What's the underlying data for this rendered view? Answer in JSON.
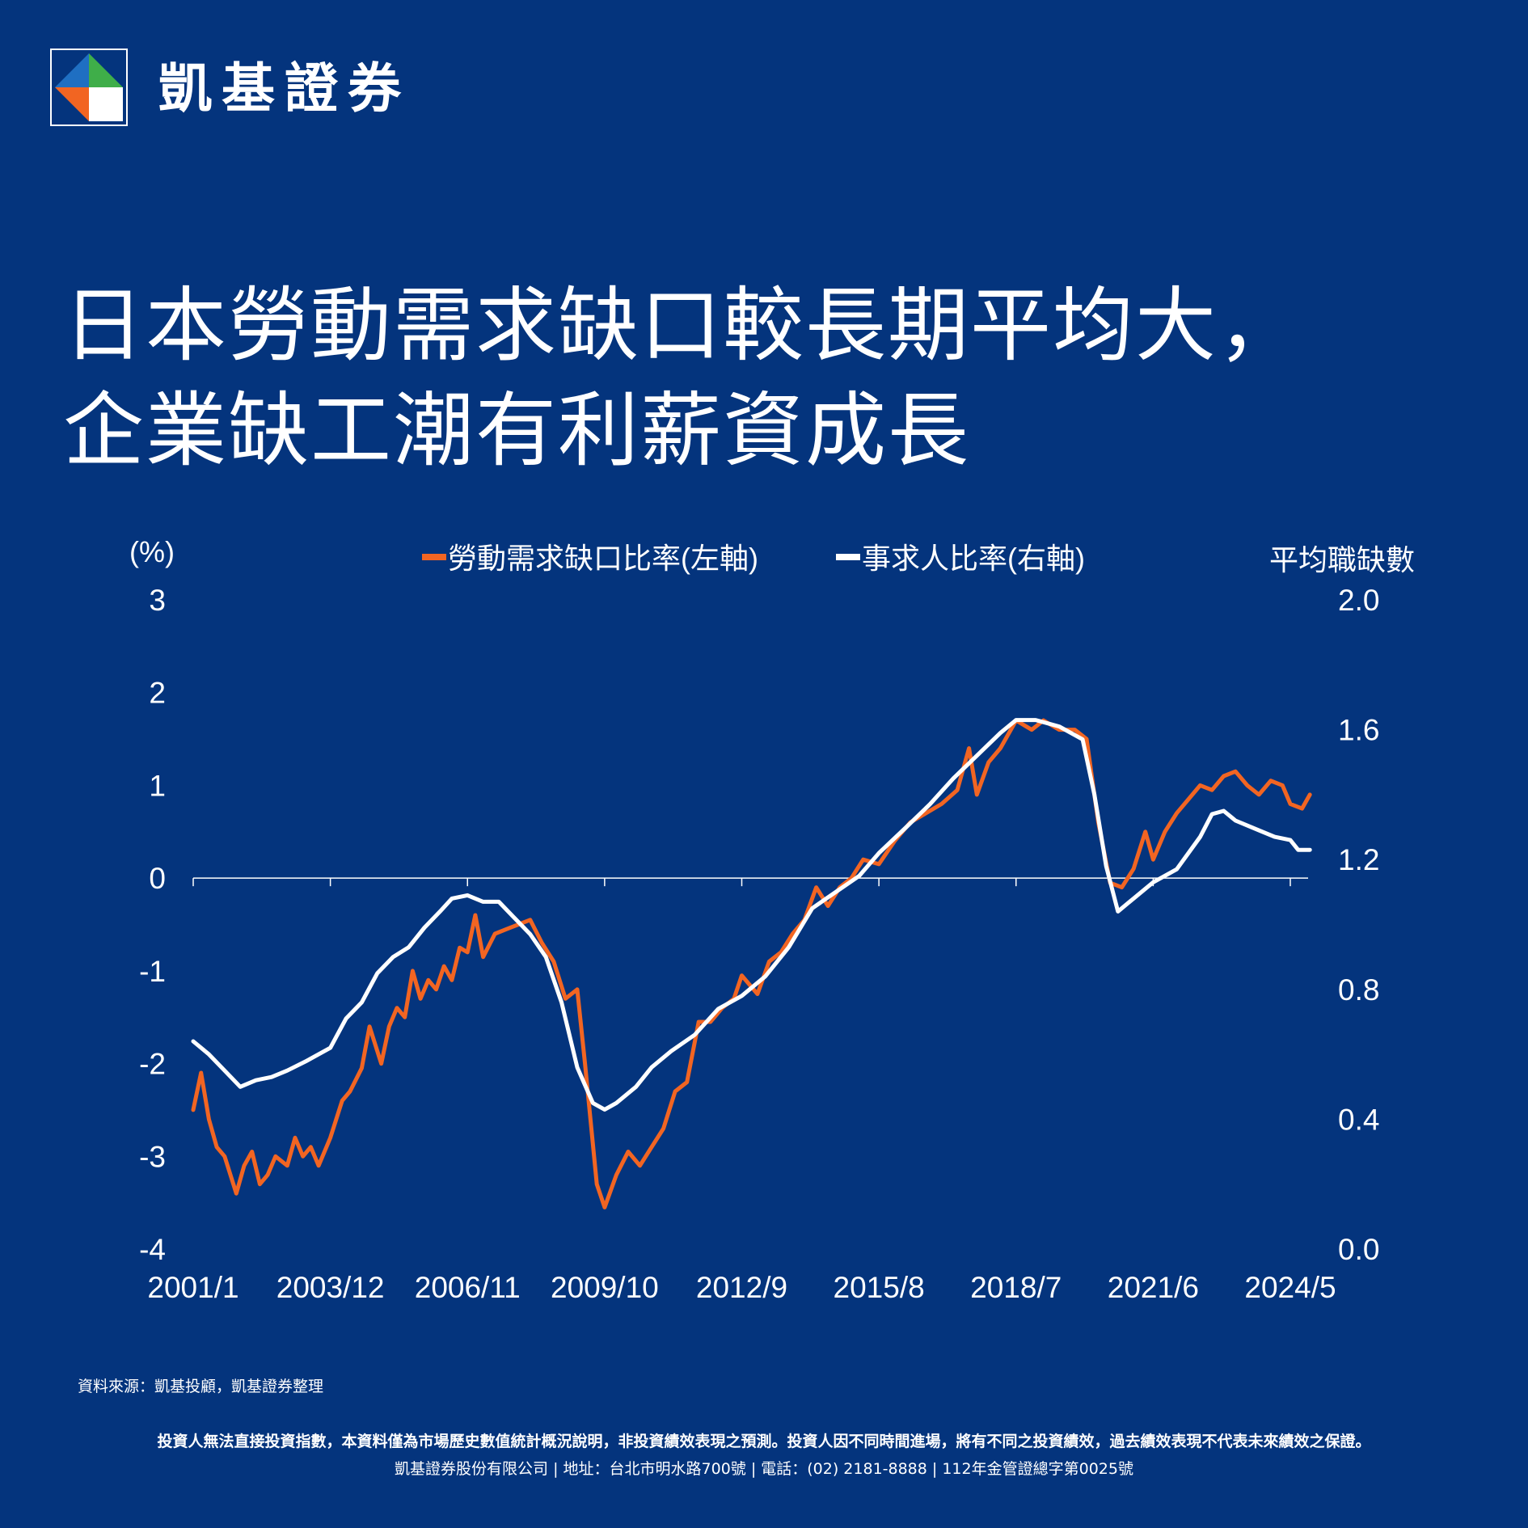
{
  "brand": {
    "name": "凱基證券",
    "logo_icon": "kgi-diamond-logo"
  },
  "headline": {
    "line1": "日本勞動需求缺口較長期平均大，",
    "line2": "企業缺工潮有利薪資成長"
  },
  "chart_data": {
    "type": "line",
    "x_tick_labels": [
      "2001/1",
      "2003/12",
      "2006/11",
      "2009/10",
      "2012/9",
      "2015/8",
      "2018/7",
      "2021/6",
      "2024/5"
    ],
    "y_left": {
      "unit_label": "(%)",
      "ticks": [
        "3",
        "2",
        "1",
        "0",
        "-1",
        "-2",
        "-3",
        "-4"
      ],
      "range": [
        -4,
        3
      ]
    },
    "y_right": {
      "unit_label": "平均職缺數",
      "ticks": [
        "2.0",
        "1.6",
        "1.2",
        "0.8",
        "0.4",
        "0.0"
      ],
      "range": [
        0,
        2
      ]
    },
    "grid": false,
    "legend_position": "top",
    "series": [
      {
        "name": "勞動需求缺口比率(左軸)",
        "axis": "left",
        "color": "#f26522",
        "points": [
          [
            "2001/1",
            -2.5
          ],
          [
            "2001/3",
            -2.1
          ],
          [
            "2001/5",
            -2.6
          ],
          [
            "2001/7",
            -2.9
          ],
          [
            "2001/9",
            -3.0
          ],
          [
            "2001/12",
            -3.4
          ],
          [
            "2002/2",
            -3.1
          ],
          [
            "2002/4",
            -2.95
          ],
          [
            "2002/6",
            -3.3
          ],
          [
            "2002/8",
            -3.2
          ],
          [
            "2002/10",
            -3.0
          ],
          [
            "2003/1",
            -3.1
          ],
          [
            "2003/3",
            -2.8
          ],
          [
            "2003/5",
            -3.0
          ],
          [
            "2003/7",
            -2.9
          ],
          [
            "2003/9",
            -3.1
          ],
          [
            "2003/12",
            -2.8
          ],
          [
            "2004/3",
            -2.4
          ],
          [
            "2004/5",
            -2.3
          ],
          [
            "2004/8",
            -2.05
          ],
          [
            "2004/10",
            -1.6
          ],
          [
            "2005/1",
            -2.0
          ],
          [
            "2005/3",
            -1.6
          ],
          [
            "2005/5",
            -1.4
          ],
          [
            "2005/7",
            -1.5
          ],
          [
            "2005/9",
            -1.0
          ],
          [
            "2005/11",
            -1.3
          ],
          [
            "2006/1",
            -1.1
          ],
          [
            "2006/3",
            -1.2
          ],
          [
            "2006/5",
            -0.95
          ],
          [
            "2006/7",
            -1.1
          ],
          [
            "2006/9",
            -0.75
          ],
          [
            "2006/11",
            -0.8
          ],
          [
            "2007/1",
            -0.4
          ],
          [
            "2007/3",
            -0.85
          ],
          [
            "2007/6",
            -0.6
          ],
          [
            "2007/9",
            -0.55
          ],
          [
            "2007/12",
            -0.5
          ],
          [
            "2008/3",
            -0.45
          ],
          [
            "2008/6",
            -0.7
          ],
          [
            "2008/9",
            -0.9
          ],
          [
            "2008/12",
            -1.3
          ],
          [
            "2009/3",
            -1.2
          ],
          [
            "2009/5",
            -2.0
          ],
          [
            "2009/8",
            -3.3
          ],
          [
            "2009/10",
            -3.55
          ],
          [
            "2010/1",
            -3.2
          ],
          [
            "2010/4",
            -2.95
          ],
          [
            "2010/7",
            -3.1
          ],
          [
            "2010/10",
            -2.9
          ],
          [
            "2011/1",
            -2.7
          ],
          [
            "2011/4",
            -2.3
          ],
          [
            "2011/7",
            -2.2
          ],
          [
            "2011/10",
            -1.55
          ],
          [
            "2012/1",
            -1.55
          ],
          [
            "2012/4",
            -1.4
          ],
          [
            "2012/7",
            -1.3
          ],
          [
            "2012/9",
            -1.05
          ],
          [
            "2013/1",
            -1.25
          ],
          [
            "2013/4",
            -0.9
          ],
          [
            "2013/7",
            -0.8
          ],
          [
            "2013/10",
            -0.6
          ],
          [
            "2014/1",
            -0.45
          ],
          [
            "2014/4",
            -0.1
          ],
          [
            "2014/7",
            -0.3
          ],
          [
            "2014/10",
            -0.1
          ],
          [
            "2015/1",
            0.0
          ],
          [
            "2015/4",
            0.2
          ],
          [
            "2015/8",
            0.15
          ],
          [
            "2015/12",
            0.4
          ],
          [
            "2016/4",
            0.6
          ],
          [
            "2016/8",
            0.7
          ],
          [
            "2016/12",
            0.8
          ],
          [
            "2017/4",
            0.95
          ],
          [
            "2017/7",
            1.4
          ],
          [
            "2017/9",
            0.9
          ],
          [
            "2017/12",
            1.25
          ],
          [
            "2018/3",
            1.4
          ],
          [
            "2018/7",
            1.7
          ],
          [
            "2018/11",
            1.6
          ],
          [
            "2019/2",
            1.7
          ],
          [
            "2019/6",
            1.6
          ],
          [
            "2019/10",
            1.6
          ],
          [
            "2020/1",
            1.5
          ],
          [
            "2020/4",
            0.6
          ],
          [
            "2020/7",
            -0.05
          ],
          [
            "2020/10",
            -0.1
          ],
          [
            "2021/1",
            0.1
          ],
          [
            "2021/4",
            0.5
          ],
          [
            "2021/6",
            0.2
          ],
          [
            "2021/9",
            0.5
          ],
          [
            "2021/12",
            0.7
          ],
          [
            "2022/3",
            0.85
          ],
          [
            "2022/6",
            1.0
          ],
          [
            "2022/9",
            0.95
          ],
          [
            "2022/12",
            1.1
          ],
          [
            "2023/3",
            1.15
          ],
          [
            "2023/6",
            1.0
          ],
          [
            "2023/9",
            0.9
          ],
          [
            "2023/12",
            1.05
          ],
          [
            "2024/3",
            1.0
          ],
          [
            "2024/5",
            0.8
          ],
          [
            "2024/8",
            0.75
          ],
          [
            "2024/10",
            0.9
          ]
        ]
      },
      {
        "name": "事求人比率(右軸)",
        "axis": "right",
        "color": "#ffffff",
        "points": [
          [
            "2001/1",
            0.64
          ],
          [
            "2001/5",
            0.6
          ],
          [
            "2001/9",
            0.55
          ],
          [
            "2002/1",
            0.5
          ],
          [
            "2002/5",
            0.52
          ],
          [
            "2002/9",
            0.53
          ],
          [
            "2003/1",
            0.55
          ],
          [
            "2003/6",
            0.58
          ],
          [
            "2003/12",
            0.62
          ],
          [
            "2004/4",
            0.71
          ],
          [
            "2004/8",
            0.76
          ],
          [
            "2004/12",
            0.85
          ],
          [
            "2005/4",
            0.9
          ],
          [
            "2005/8",
            0.93
          ],
          [
            "2005/12",
            0.99
          ],
          [
            "2006/4",
            1.04
          ],
          [
            "2006/7",
            1.08
          ],
          [
            "2006/11",
            1.09
          ],
          [
            "2007/3",
            1.07
          ],
          [
            "2007/7",
            1.07
          ],
          [
            "2007/11",
            1.02
          ],
          [
            "2008/3",
            0.97
          ],
          [
            "2008/7",
            0.9
          ],
          [
            "2008/11",
            0.76
          ],
          [
            "2009/3",
            0.56
          ],
          [
            "2009/7",
            0.45
          ],
          [
            "2009/10",
            0.43
          ],
          [
            "2010/1",
            0.45
          ],
          [
            "2010/6",
            0.5
          ],
          [
            "2010/10",
            0.56
          ],
          [
            "2011/3",
            0.61
          ],
          [
            "2011/9",
            0.66
          ],
          [
            "2012/3",
            0.74
          ],
          [
            "2012/9",
            0.78
          ],
          [
            "2013/3",
            0.84
          ],
          [
            "2013/9",
            0.93
          ],
          [
            "2014/3",
            1.05
          ],
          [
            "2014/9",
            1.1
          ],
          [
            "2015/3",
            1.15
          ],
          [
            "2015/8",
            1.22
          ],
          [
            "2016/3",
            1.3
          ],
          [
            "2016/9",
            1.37
          ],
          [
            "2017/3",
            1.45
          ],
          [
            "2017/9",
            1.52
          ],
          [
            "2018/3",
            1.59
          ],
          [
            "2018/7",
            1.63
          ],
          [
            "2018/12",
            1.63
          ],
          [
            "2019/6",
            1.61
          ],
          [
            "2019/12",
            1.57
          ],
          [
            "2020/3",
            1.4
          ],
          [
            "2020/6",
            1.18
          ],
          [
            "2020/9",
            1.04
          ],
          [
            "2021/1",
            1.08
          ],
          [
            "2021/6",
            1.13
          ],
          [
            "2021/12",
            1.17
          ],
          [
            "2022/6",
            1.27
          ],
          [
            "2022/9",
            1.34
          ],
          [
            "2022/12",
            1.35
          ],
          [
            "2023/3",
            1.32
          ],
          [
            "2023/9",
            1.29
          ],
          [
            "2024/1",
            1.27
          ],
          [
            "2024/5",
            1.26
          ],
          [
            "2024/7",
            1.23
          ],
          [
            "2024/10",
            1.23
          ]
        ]
      }
    ]
  },
  "footer": {
    "source": "資料來源：凱基投顧，凱基證券整理",
    "disclaimer": "投資人無法直接投資指數，本資料僅為市場歷史數值統計概況說明，非投資績效表現之預測。投資人因不同時間進場，將有不同之投資績效，過去績效表現不代表未來績效之保證。",
    "company": "凱基證券股份有限公司 | 地址：台北市明水路700號 | 電話：(02) 2181-8888 | 112年金管證總字第0025號"
  }
}
